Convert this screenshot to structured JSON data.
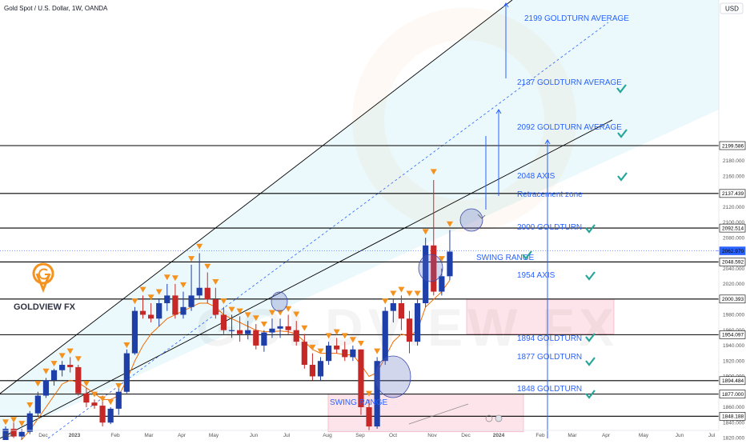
{
  "header": {
    "symbol": "Gold Spot / U.S. Dollar, 1W, OANDA",
    "currency": "USD"
  },
  "logo": {
    "brand": "GOLDVIEW FX",
    "watermark": "GOLDVIEW FX"
  },
  "colors": {
    "bull": "#1f3fa8",
    "bear": "#c62828",
    "channel_fill": "#e3f6fb",
    "swing_fill": "#fde4ea",
    "annotation": "#2962ff",
    "check": "#26a69a",
    "marker": "#f5921e",
    "ema": "#ef6c00"
  },
  "chart_data": {
    "type": "candlestick",
    "title": "Gold Spot / U.S. Dollar, 1W, OANDA",
    "ylim": [
      1820,
      2220
    ],
    "y_ticks": [
      1820,
      1840,
      1860,
      1880,
      1900,
      1920,
      1940,
      1960,
      1980,
      2000,
      2020,
      2040,
      2060,
      2080,
      2100,
      2120,
      2140,
      2160,
      2180
    ],
    "x_ticks": [
      "Nov",
      "Dec",
      "2023",
      "Feb",
      "Mar",
      "Apr",
      "May",
      "Jun",
      "Jul",
      "Aug",
      "Sep",
      "Oct",
      "Nov",
      "Dec",
      "2024",
      "Feb",
      "Mar",
      "Apr",
      "May",
      "Jun",
      "Jul"
    ],
    "price_labels": [
      2199.586,
      2137.439,
      2092.514,
      2062.97,
      2048.592,
      2000.393,
      1954.097,
      1894.484,
      1877.0,
      1848.188
    ],
    "horizontal_levels": [
      2199.586,
      2137.439,
      2092.514,
      2048.592,
      2000.393,
      1954.097,
      1894.484,
      1877.0,
      1848.188
    ],
    "current_price": 2062.97,
    "candles": [
      [
        1798,
        1835,
        1795,
        1832
      ],
      [
        1832,
        1840,
        1820,
        1822
      ],
      [
        1822,
        1832,
        1818,
        1828
      ],
      [
        1828,
        1855,
        1825,
        1852
      ],
      [
        1852,
        1880,
        1848,
        1875
      ],
      [
        1875,
        1898,
        1872,
        1895
      ],
      [
        1895,
        1910,
        1888,
        1908
      ],
      [
        1908,
        1920,
        1900,
        1915
      ],
      [
        1915,
        1925,
        1905,
        1912
      ],
      [
        1912,
        1915,
        1875,
        1878
      ],
      [
        1878,
        1885,
        1860,
        1866
      ],
      [
        1866,
        1870,
        1858,
        1862
      ],
      [
        1862,
        1875,
        1835,
        1840
      ],
      [
        1840,
        1860,
        1838,
        1858
      ],
      [
        1858,
        1885,
        1850,
        1880
      ],
      [
        1880,
        1935,
        1878,
        1930
      ],
      [
        1930,
        1990,
        1928,
        1985
      ],
      [
        1985,
        2005,
        1975,
        1980
      ],
      [
        1980,
        1995,
        1970,
        1975
      ],
      [
        1975,
        2000,
        1965,
        1995
      ],
      [
        1995,
        2020,
        1985,
        2005
      ],
      [
        2005,
        2020,
        1975,
        1980
      ],
      [
        1980,
        2010,
        1975,
        1990
      ],
      [
        1990,
        2045,
        1985,
        2005
      ],
      [
        2005,
        2060,
        2000,
        2015
      ],
      [
        2015,
        2035,
        1995,
        2000
      ],
      [
        2000,
        2015,
        1975,
        1980
      ],
      [
        1980,
        1990,
        1955,
        1960
      ],
      [
        1960,
        1980,
        1950,
        1960
      ],
      [
        1960,
        1978,
        1945,
        1955
      ],
      [
        1955,
        1972,
        1948,
        1960
      ],
      [
        1960,
        1968,
        1935,
        1940
      ],
      [
        1940,
        1960,
        1932,
        1957
      ],
      [
        1957,
        1975,
        1950,
        1962
      ],
      [
        1962,
        1975,
        1950,
        1965
      ],
      [
        1965,
        1980,
        1955,
        1960
      ],
      [
        1960,
        1972,
        1940,
        1945
      ],
      [
        1945,
        1955,
        1910,
        1915
      ],
      [
        1915,
        1930,
        1895,
        1900
      ],
      [
        1900,
        1925,
        1895,
        1920
      ],
      [
        1920,
        1945,
        1915,
        1940
      ],
      [
        1940,
        1950,
        1930,
        1935
      ],
      [
        1935,
        1945,
        1920,
        1925
      ],
      [
        1925,
        1940,
        1920,
        1935
      ],
      [
        1935,
        1935,
        1850,
        1860
      ],
      [
        1860,
        1870,
        1830,
        1835
      ],
      [
        1835,
        1925,
        1832,
        1920
      ],
      [
        1920,
        1990,
        1915,
        1985
      ],
      [
        1985,
        2000,
        1970,
        1995
      ],
      [
        1995,
        2005,
        1960,
        1975
      ],
      [
        1975,
        1985,
        1930,
        1945
      ],
      [
        1945,
        2000,
        1940,
        1995
      ],
      [
        1995,
        2080,
        1990,
        2070
      ],
      [
        2070,
        2155,
        2005,
        2010
      ],
      [
        2010,
        2040,
        2005,
        2030
      ],
      [
        2030,
        2090,
        2025,
        2062
      ]
    ],
    "ema": [
      1800,
      1810,
      1818,
      1830,
      1845,
      1860,
      1875,
      1890,
      1895,
      1892,
      1885,
      1878,
      1870,
      1870,
      1875,
      1895,
      1920,
      1940,
      1955,
      1965,
      1975,
      1980,
      1985,
      1990,
      1995,
      1995,
      1990,
      1980,
      1975,
      1970,
      1965,
      1960,
      1958,
      1958,
      1959,
      1958,
      1955,
      1945,
      1935,
      1930,
      1930,
      1930,
      1928,
      1928,
      1915,
      1900,
      1905,
      1925,
      1945,
      1955,
      1952,
      1960,
      1990,
      2000,
      2010,
      2025
    ],
    "markers_above": [
      [
        0,
        1840
      ],
      [
        1,
        1843
      ],
      [
        2,
        1838
      ],
      [
        3,
        1862
      ],
      [
        4,
        1890
      ],
      [
        5,
        1906
      ],
      [
        6,
        1916
      ],
      [
        7,
        1926
      ],
      [
        8,
        1932
      ],
      [
        9,
        1922
      ],
      [
        10,
        1890
      ],
      [
        11,
        1876
      ],
      [
        12,
        1870
      ],
      [
        13,
        1866
      ],
      [
        14,
        1887
      ],
      [
        15,
        1940
      ],
      [
        16,
        1997
      ],
      [
        17,
        2012
      ],
      [
        18,
        2002
      ],
      [
        19,
        2009
      ],
      [
        20,
        2028
      ],
      [
        21,
        2027
      ],
      [
        22,
        2018
      ],
      [
        23,
        2052
      ],
      [
        24,
        2068
      ],
      [
        25,
        2042
      ],
      [
        26,
        2022
      ],
      [
        27,
        1997
      ],
      [
        28,
        1986
      ],
      [
        29,
        1984
      ],
      [
        30,
        1979
      ],
      [
        31,
        1975
      ],
      [
        32,
        1967
      ],
      [
        33,
        1982
      ],
      [
        34,
        1982
      ],
      [
        35,
        1987
      ],
      [
        36,
        1980
      ],
      [
        37,
        1962
      ],
      [
        38,
        1937
      ],
      [
        39,
        1932
      ],
      [
        40,
        1952
      ],
      [
        41,
        1957
      ],
      [
        42,
        1952
      ],
      [
        43,
        1947
      ],
      [
        44,
        1942
      ],
      [
        45,
        1877
      ],
      [
        46,
        1932
      ],
      [
        47,
        1997
      ],
      [
        48,
        2007
      ],
      [
        49,
        2012
      ],
      [
        50,
        2007
      ],
      [
        51,
        2007
      ],
      [
        52,
        2087
      ],
      [
        53,
        2165
      ],
      [
        54,
        2052
      ],
      [
        55,
        2097
      ]
    ],
    "annotations": {
      "goldturn_2199": "2199 GOLDTURN AVERAGE",
      "goldturn_2137": "2137 GOLDTURN AVERAGE",
      "goldturn_2092": "2092 GOLDTURN AVERAGE",
      "axis_2048": "2048 AXIS",
      "retracement": "Retracement zone",
      "goldturn_2000": "2000 GOLDTURN",
      "swing_range_top": "SWING RANGE",
      "axis_1954": "1954 AXIS",
      "goldturn_1894": "1894 GOLDTURN",
      "goldturn_1877": "1877 GOLDTURN",
      "goldturn_1848": "1848 GOLDTURN",
      "swing_range_bottom": "SWING RANGE"
    }
  }
}
